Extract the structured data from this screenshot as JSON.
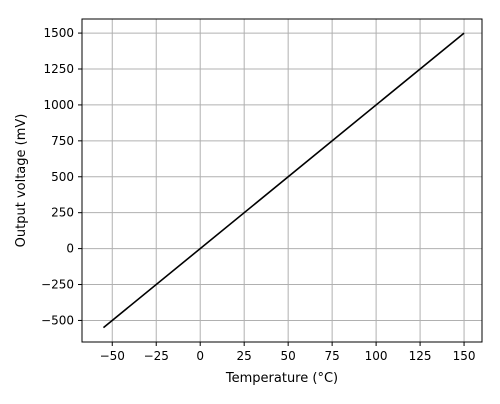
{
  "chart_data": {
    "type": "line",
    "title": "",
    "xlabel": "Temperature (°C)",
    "ylabel": "Output voltage (mV)",
    "xlim": [
      -67.2,
      160.2
    ],
    "ylim": [
      -650,
      1598
    ],
    "x_ticks": [
      -50,
      -25,
      0,
      25,
      50,
      75,
      100,
      125,
      150
    ],
    "x_tick_labels": [
      "−50",
      "−25",
      "0",
      "25",
      "50",
      "75",
      "100",
      "125",
      "150"
    ],
    "y_ticks": [
      -500,
      -250,
      0,
      250,
      500,
      750,
      1000,
      1250,
      1500
    ],
    "y_tick_labels": [
      "−500",
      "−250",
      "0",
      "250",
      "500",
      "750",
      "1000",
      "1250",
      "1500"
    ],
    "grid": true,
    "series": [
      {
        "color": "#000000",
        "x": [
          -55,
          150
        ],
        "y": [
          -550,
          1500
        ]
      }
    ]
  }
}
